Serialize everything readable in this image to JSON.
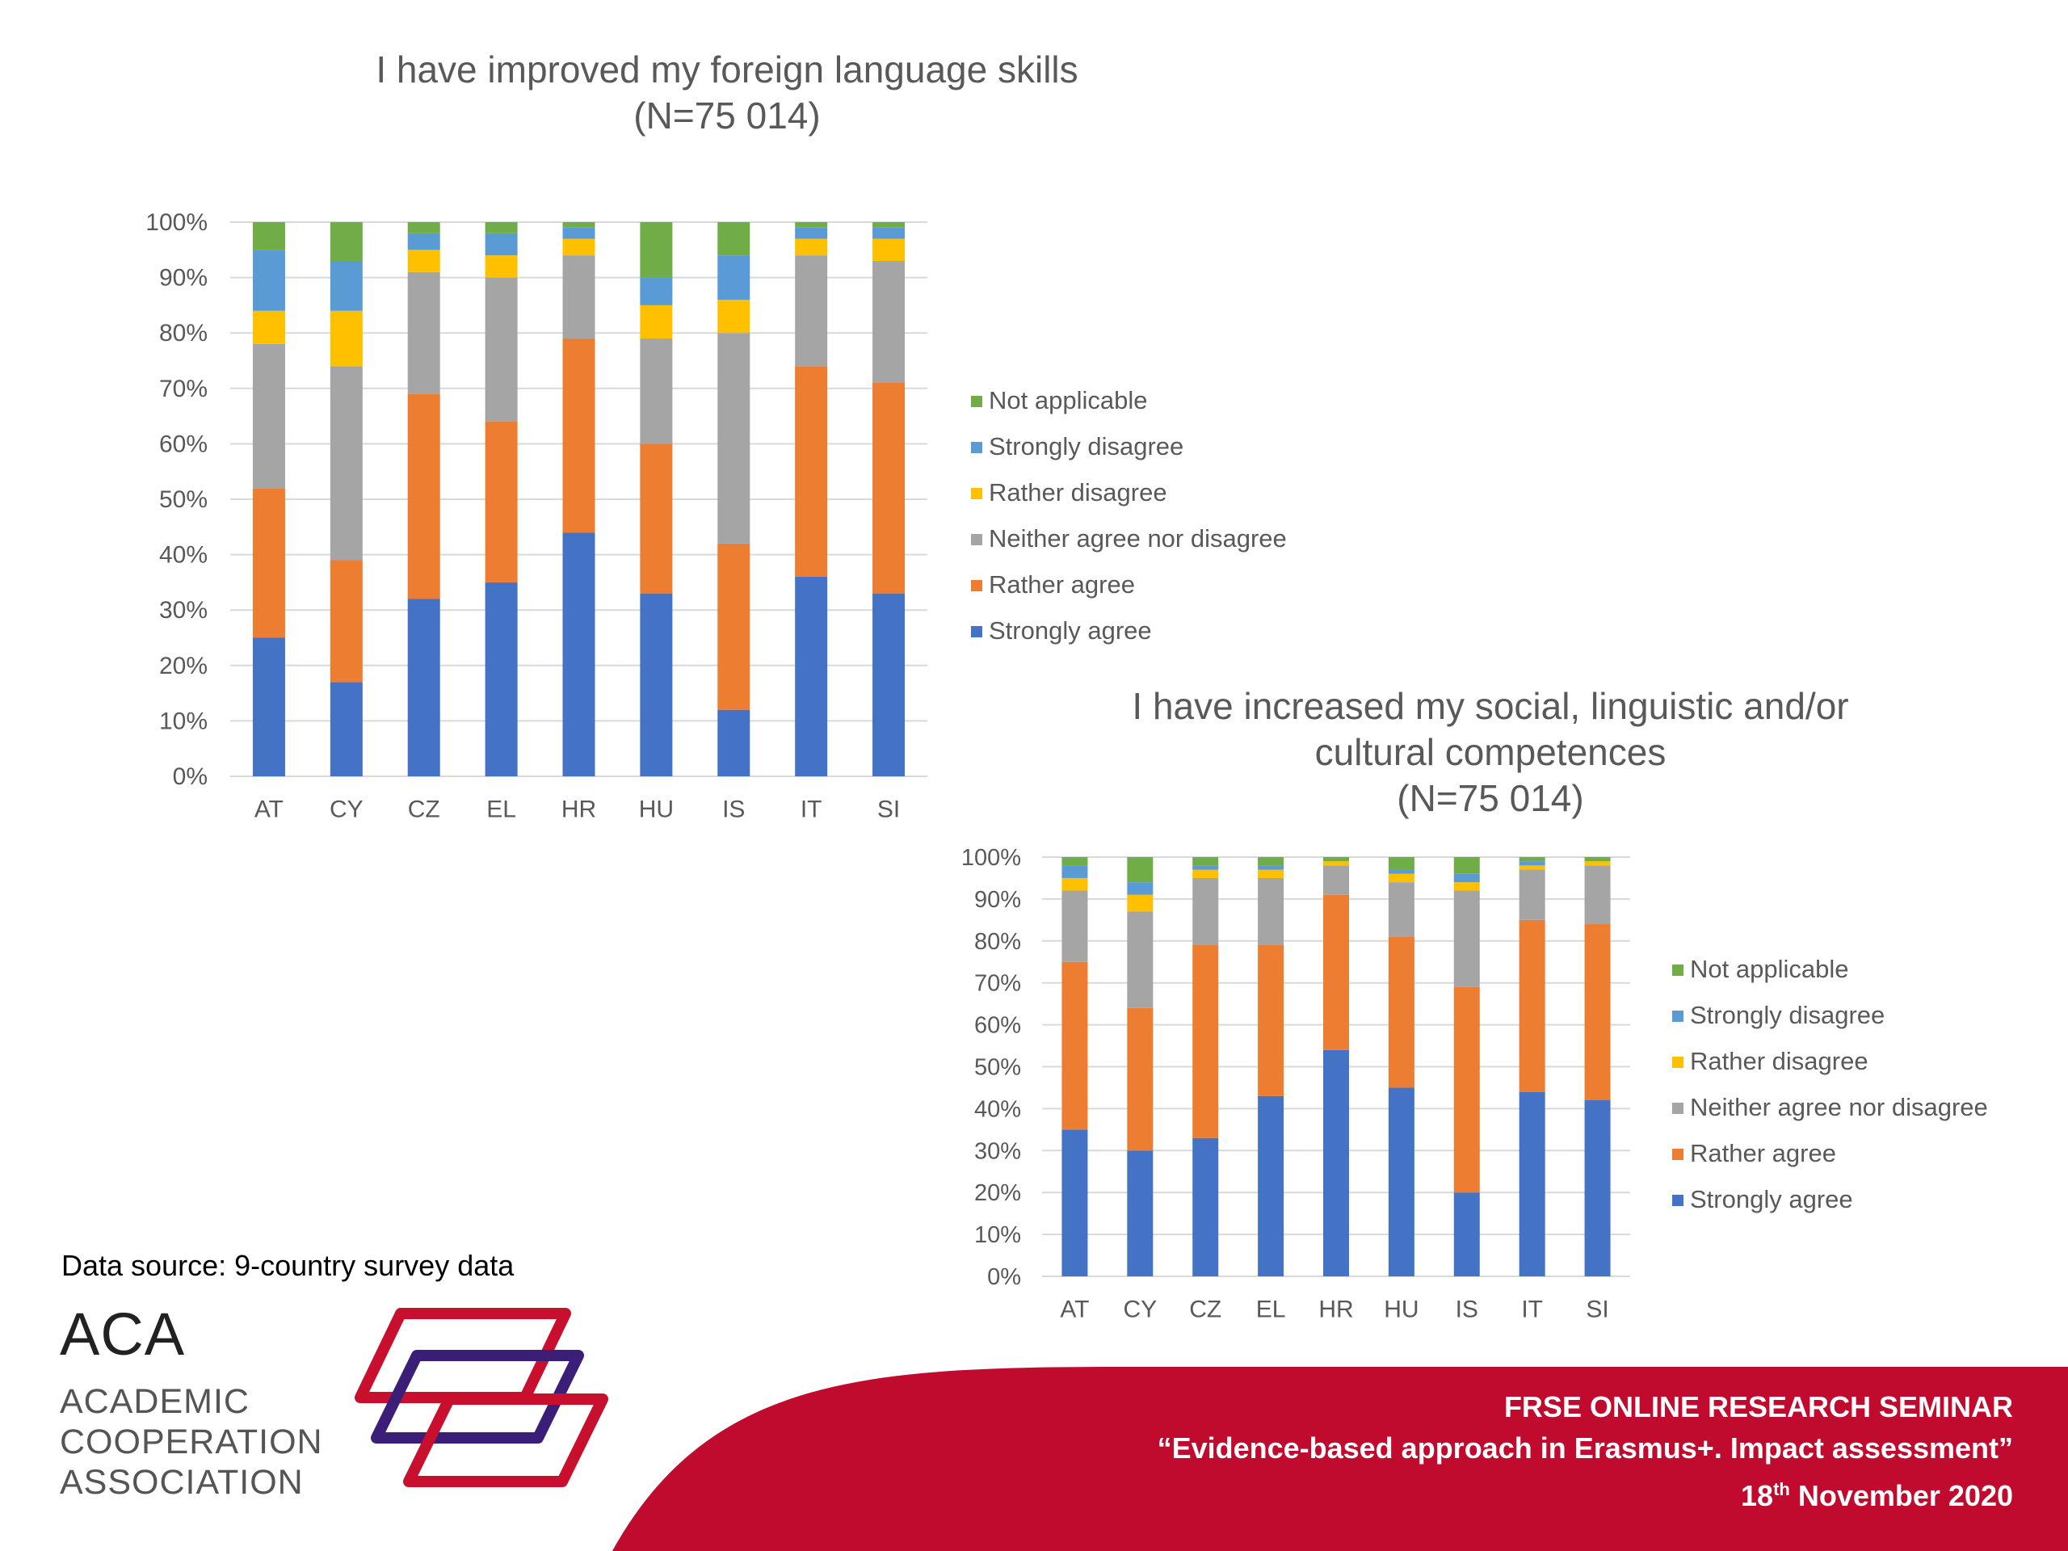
{
  "colors": {
    "strongly_agree": "#4472C4",
    "rather_agree": "#ED7D31",
    "neither": "#A5A5A5",
    "rather_disagree": "#FFC000",
    "strongly_disagree": "#5B9BD5",
    "not_applicable": "#70AD47",
    "footer_band": "#C00A2E",
    "logo_red": "#C8102E",
    "logo_purple": "#3B1E78",
    "axis_text": "#595959",
    "gridline": "#D9D9D9"
  },
  "chart_data": [
    {
      "type": "bar",
      "stacked": true,
      "title_lines": [
        "I have improved my foreign language skills",
        "(N=75 014)"
      ],
      "categories": [
        "AT",
        "CY",
        "CZ",
        "EL",
        "HR",
        "HU",
        "IS",
        "IT",
        "SI"
      ],
      "y_ticks": [
        "0%",
        "10%",
        "20%",
        "30%",
        "40%",
        "50%",
        "60%",
        "70%",
        "80%",
        "90%",
        "100%"
      ],
      "ylim": [
        0,
        100
      ],
      "grid": true,
      "legend_position": "right",
      "series": [
        {
          "name": "Strongly agree",
          "color_key": "strongly_agree",
          "values": [
            25,
            17,
            32,
            35,
            44,
            33,
            12,
            36,
            33
          ]
        },
        {
          "name": "Rather agree",
          "color_key": "rather_agree",
          "values": [
            27,
            22,
            37,
            29,
            35,
            27,
            30,
            38,
            38
          ]
        },
        {
          "name": "Neither agree nor disagree",
          "color_key": "neither",
          "values": [
            26,
            35,
            22,
            26,
            15,
            19,
            38,
            20,
            22
          ]
        },
        {
          "name": "Rather disagree",
          "color_key": "rather_disagree",
          "values": [
            6,
            10,
            4,
            4,
            3,
            6,
            6,
            3,
            4
          ]
        },
        {
          "name": "Strongly disagree",
          "color_key": "strongly_disagree",
          "values": [
            11,
            9,
            3,
            4,
            2,
            5,
            8,
            2,
            2
          ]
        },
        {
          "name": "Not applicable",
          "color_key": "not_applicable",
          "values": [
            5,
            7,
            2,
            2,
            1,
            10,
            6,
            1,
            1
          ]
        }
      ]
    },
    {
      "type": "bar",
      "stacked": true,
      "title_lines": [
        "I have increased my social, linguistic and/or",
        "cultural competences",
        "(N=75 014)"
      ],
      "categories": [
        "AT",
        "CY",
        "CZ",
        "EL",
        "HR",
        "HU",
        "IS",
        "IT",
        "SI"
      ],
      "y_ticks": [
        "0%",
        "10%",
        "20%",
        "30%",
        "40%",
        "50%",
        "60%",
        "70%",
        "80%",
        "90%",
        "100%"
      ],
      "ylim": [
        0,
        100
      ],
      "grid": true,
      "legend_position": "right",
      "series": [
        {
          "name": "Strongly agree",
          "color_key": "strongly_agree",
          "values": [
            35,
            30,
            33,
            43,
            54,
            45,
            20,
            44,
            42
          ]
        },
        {
          "name": "Rather agree",
          "color_key": "rather_agree",
          "values": [
            40,
            34,
            46,
            36,
            37,
            36,
            49,
            41,
            42
          ]
        },
        {
          "name": "Neither agree nor disagree",
          "color_key": "neither",
          "values": [
            17,
            23,
            16,
            16,
            7,
            13,
            23,
            12,
            14
          ]
        },
        {
          "name": "Rather disagree",
          "color_key": "rather_disagree",
          "values": [
            3,
            4,
            2,
            2,
            1,
            2,
            2,
            1,
            1
          ]
        },
        {
          "name": "Strongly disagree",
          "color_key": "strongly_disagree",
          "values": [
            3,
            3,
            1,
            1,
            0,
            1,
            2,
            1,
            0
          ]
        },
        {
          "name": "Not applicable",
          "color_key": "not_applicable",
          "values": [
            2,
            6,
            2,
            2,
            1,
            3,
            4,
            1,
            1
          ]
        }
      ]
    }
  ],
  "legend_order": [
    "Not applicable",
    "Strongly disagree",
    "Rather disagree",
    "Neither agree nor disagree",
    "Rather agree",
    "Strongly agree"
  ],
  "source_note": "Data source: 9-country survey data",
  "logo": {
    "acronym": "ACA",
    "line1": "ACADEMIC",
    "line2": "COOPERATION",
    "line3": "ASSOCIATION"
  },
  "footer": {
    "line1": "FRSE ONLINE RESEARCH SEMINAR",
    "line2": "“Evidence-based approach in Erasmus+. Impact assessment”",
    "line3_day": "18",
    "line3_suffix": "th",
    "line3_rest": " November 2020"
  }
}
